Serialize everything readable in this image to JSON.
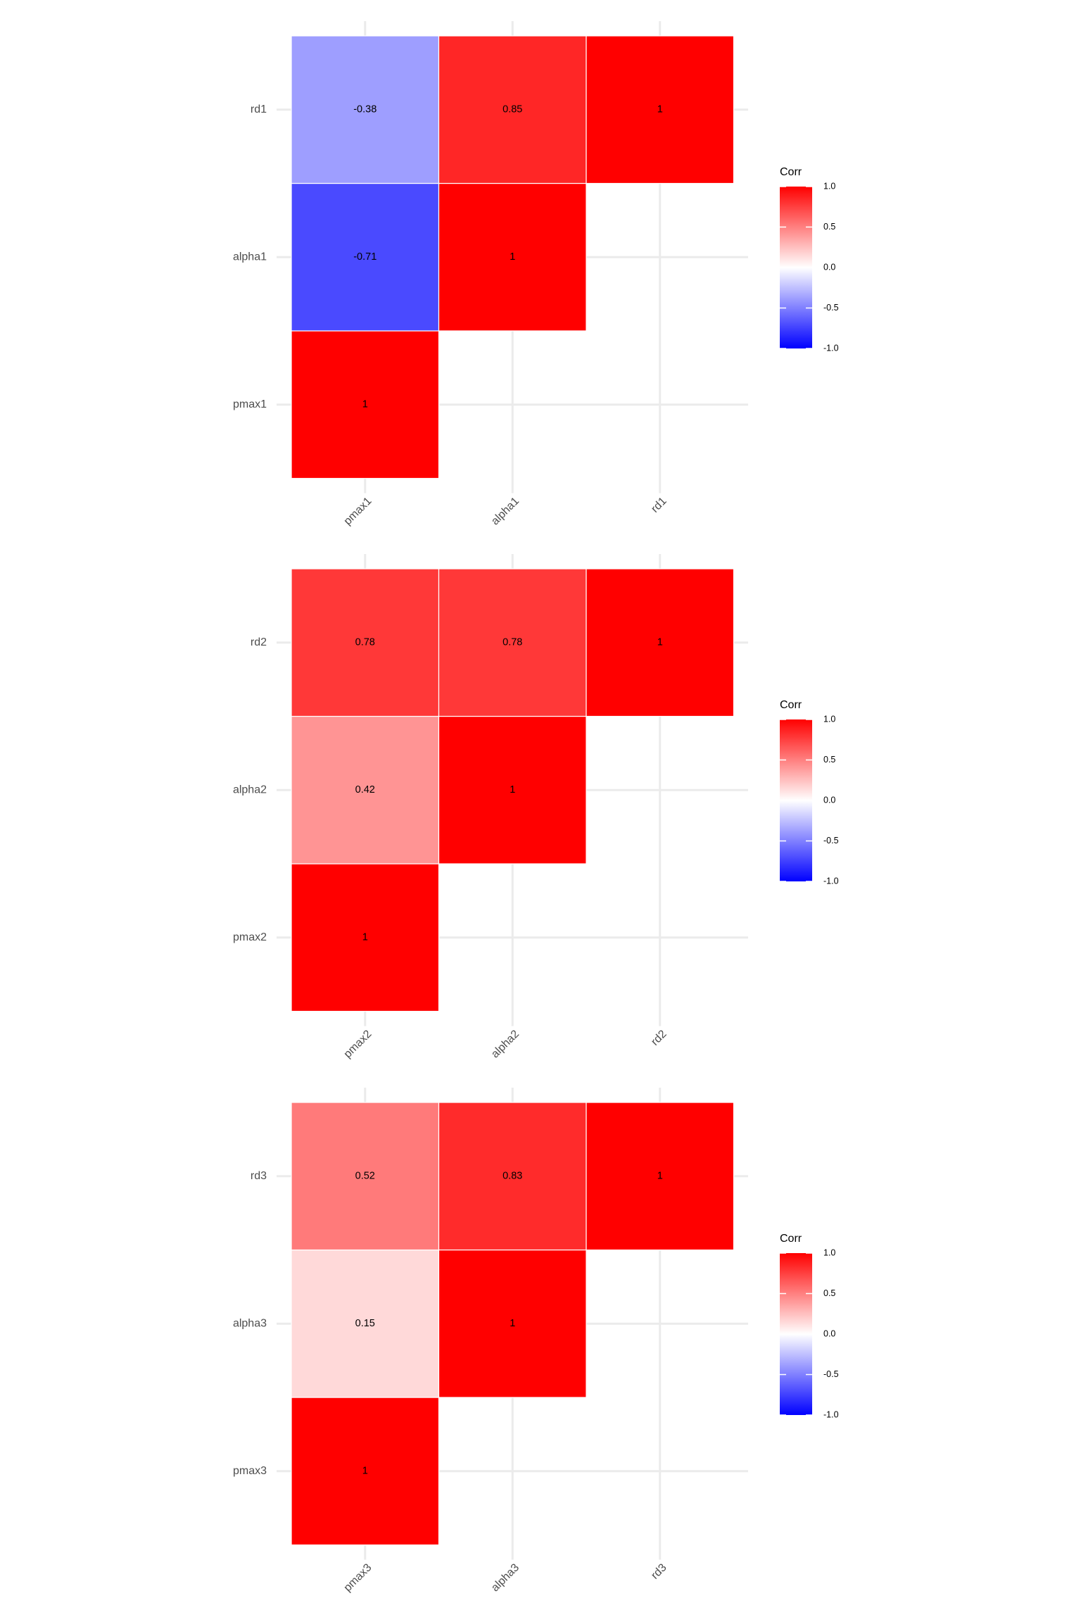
{
  "chart_data": [
    {
      "type": "heatmap",
      "variables": [
        "pmax1",
        "alpha1",
        "rd1"
      ],
      "cells": [
        {
          "x": "pmax1",
          "y": "pmax1",
          "value": 1,
          "label": "1"
        },
        {
          "x": "pmax1",
          "y": "alpha1",
          "value": -0.71,
          "label": "-0.71"
        },
        {
          "x": "alpha1",
          "y": "alpha1",
          "value": 1,
          "label": "1"
        },
        {
          "x": "pmax1",
          "y": "rd1",
          "value": -0.38,
          "label": "-0.38"
        },
        {
          "x": "alpha1",
          "y": "rd1",
          "value": 0.85,
          "label": "0.85"
        },
        {
          "x": "rd1",
          "y": "rd1",
          "value": 1,
          "label": "1"
        }
      ],
      "legend": {
        "title": "Corr",
        "ticks": [
          "-1.0",
          "-0.5",
          "0.0",
          "0.5",
          "1.0"
        ],
        "limits": [
          -1,
          1
        ],
        "position": "right"
      },
      "colors": {
        "low": "#0000ff",
        "mid": "#ffffff",
        "high": "#ff0000"
      },
      "grid": true
    },
    {
      "type": "heatmap",
      "variables": [
        "pmax2",
        "alpha2",
        "rd2"
      ],
      "cells": [
        {
          "x": "pmax2",
          "y": "pmax2",
          "value": 1,
          "label": "1"
        },
        {
          "x": "pmax2",
          "y": "alpha2",
          "value": 0.42,
          "label": "0.42"
        },
        {
          "x": "alpha2",
          "y": "alpha2",
          "value": 1,
          "label": "1"
        },
        {
          "x": "pmax2",
          "y": "rd2",
          "value": 0.78,
          "label": "0.78"
        },
        {
          "x": "alpha2",
          "y": "rd2",
          "value": 0.78,
          "label": "0.78"
        },
        {
          "x": "rd2",
          "y": "rd2",
          "value": 1,
          "label": "1"
        }
      ],
      "legend": {
        "title": "Corr",
        "ticks": [
          "-1.0",
          "-0.5",
          "0.0",
          "0.5",
          "1.0"
        ],
        "limits": [
          -1,
          1
        ],
        "position": "right"
      },
      "colors": {
        "low": "#0000ff",
        "mid": "#ffffff",
        "high": "#ff0000"
      },
      "grid": true
    },
    {
      "type": "heatmap",
      "variables": [
        "pmax3",
        "alpha3",
        "rd3"
      ],
      "cells": [
        {
          "x": "pmax3",
          "y": "pmax3",
          "value": 1,
          "label": "1"
        },
        {
          "x": "pmax3",
          "y": "alpha3",
          "value": 0.15,
          "label": "0.15"
        },
        {
          "x": "alpha3",
          "y": "alpha3",
          "value": 1,
          "label": "1"
        },
        {
          "x": "pmax3",
          "y": "rd3",
          "value": 0.52,
          "label": "0.52"
        },
        {
          "x": "alpha3",
          "y": "rd3",
          "value": 0.83,
          "label": "0.83"
        },
        {
          "x": "rd3",
          "y": "rd3",
          "value": 1,
          "label": "1"
        }
      ],
      "legend": {
        "title": "Corr",
        "ticks": [
          "-1.0",
          "-0.5",
          "0.0",
          "0.5",
          "1.0"
        ],
        "limits": [
          -1,
          1
        ],
        "position": "right"
      },
      "colors": {
        "low": "#0000ff",
        "mid": "#ffffff",
        "high": "#ff0000"
      },
      "grid": true
    }
  ]
}
